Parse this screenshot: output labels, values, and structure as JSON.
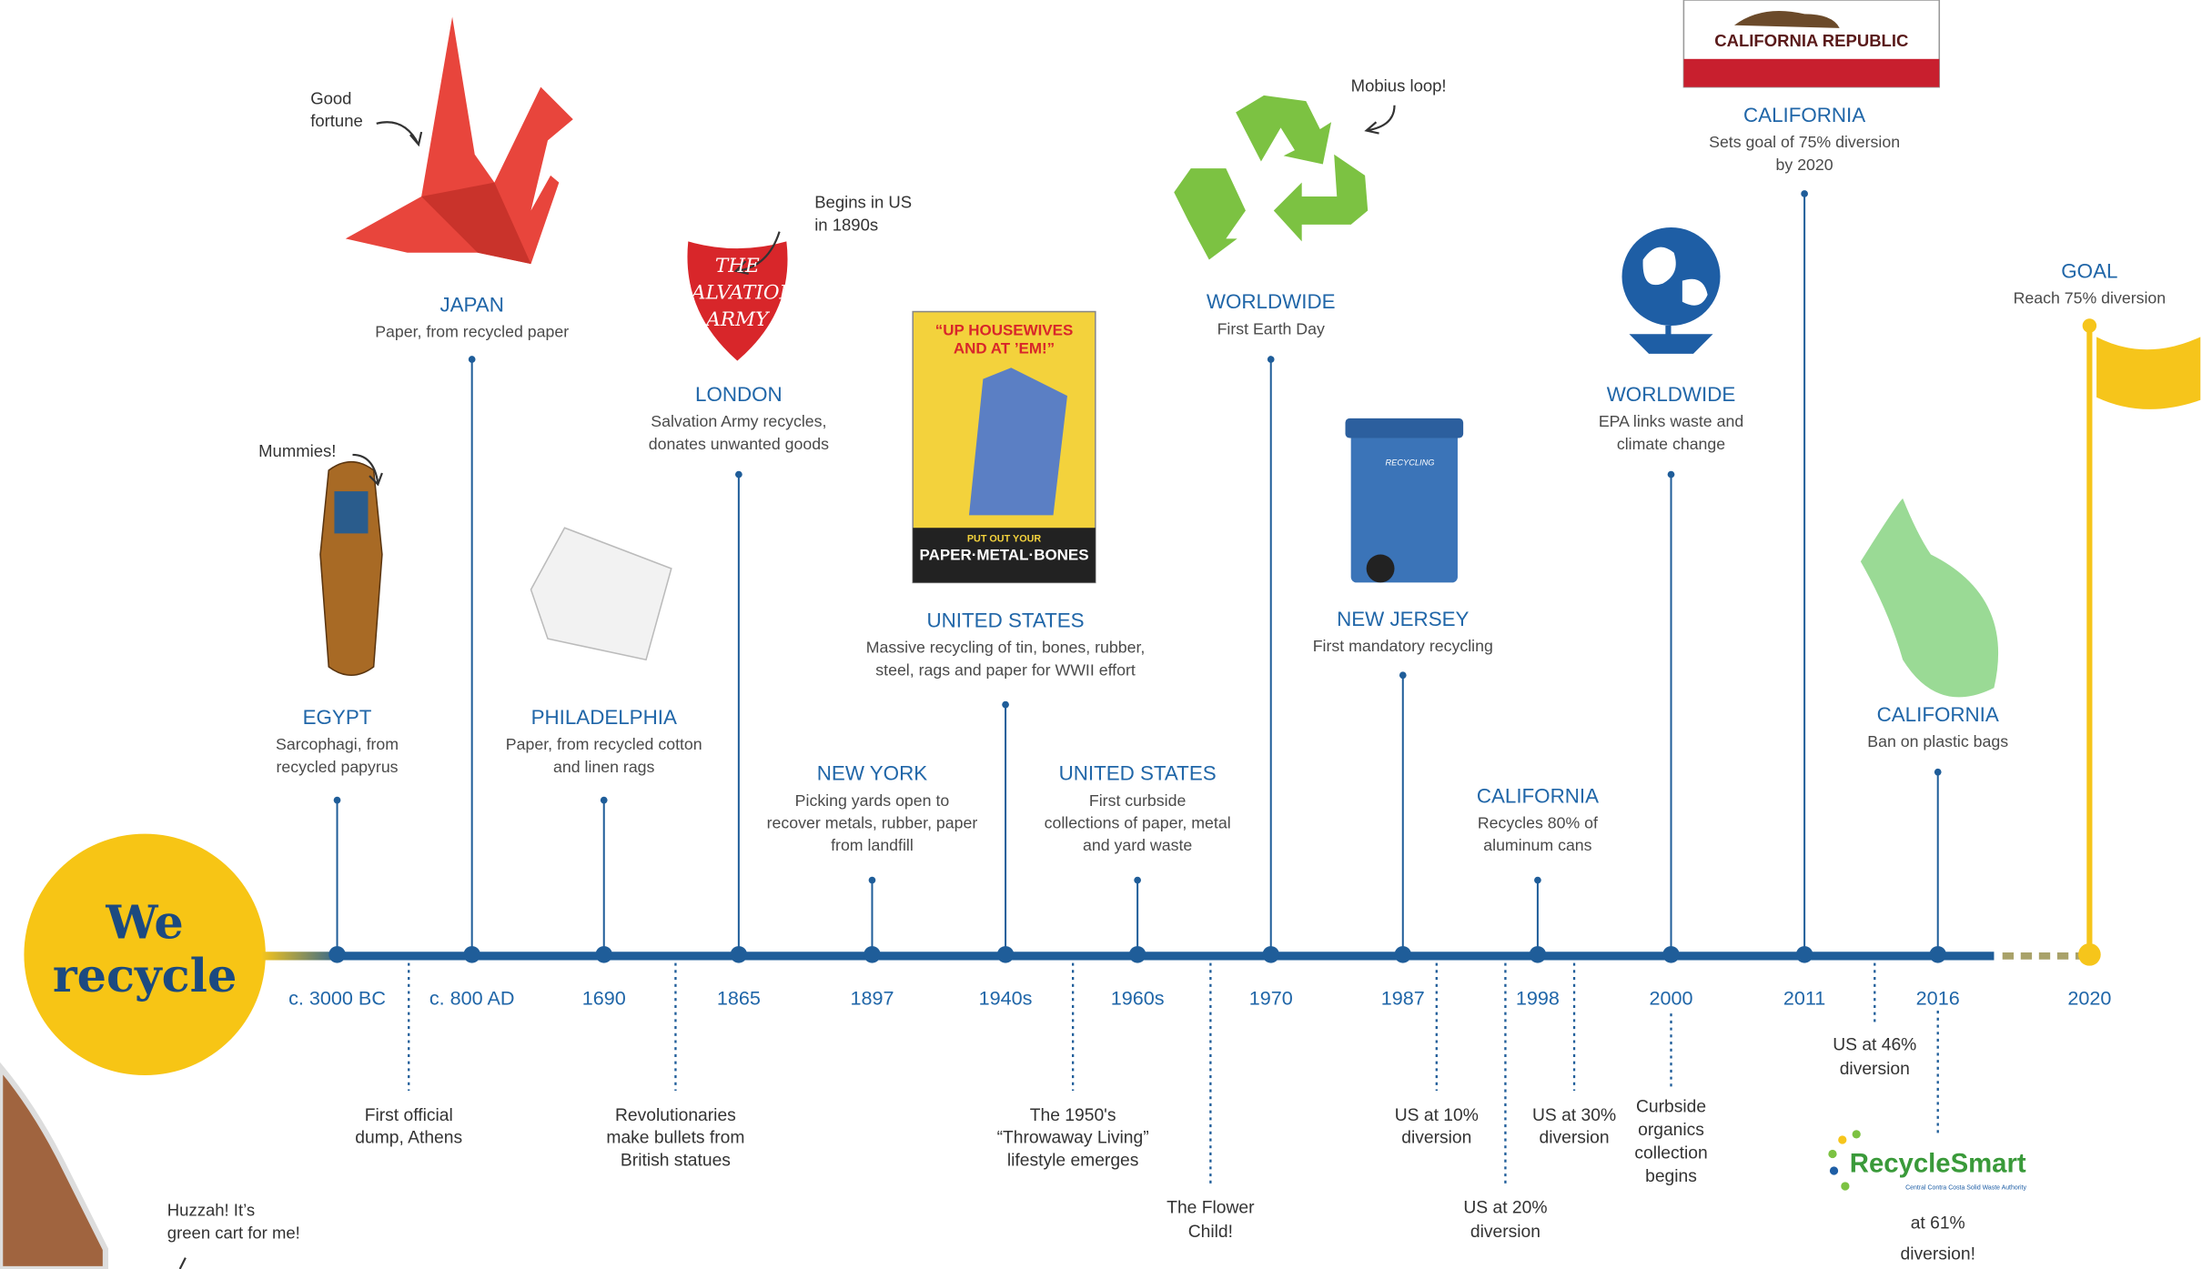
{
  "badge": {
    "lines": [
      "We",
      "recycle"
    ]
  },
  "events": [
    {
      "year": "c. 3000 BC",
      "place": "EGYPT",
      "description": [
        "Sarcophagi, from",
        "recycled papyrus"
      ]
    },
    {
      "year": "c. 800 AD",
      "place": "JAPAN",
      "description": [
        "Paper, from recycled paper"
      ]
    },
    {
      "year": "1690",
      "place": "PHILADELPHIA",
      "description": [
        "Paper, from recycled cotton",
        "and linen rags"
      ]
    },
    {
      "year": "1865",
      "place": "LONDON",
      "description": [
        "Salvation Army recycles,",
        "donates unwanted goods"
      ]
    },
    {
      "year": "1897",
      "place": "NEW YORK",
      "description": [
        "Picking yards open to",
        "recover metals, rubber, paper",
        "from landfill"
      ]
    },
    {
      "year": "1940s",
      "place": "UNITED STATES",
      "description": [
        "Massive recycling of tin, bones, rubber,",
        "steel, rags and paper for WWII effort"
      ]
    },
    {
      "year": "1960s",
      "place": "UNITED STATES",
      "description": [
        "First curbside",
        "collections of paper, metal",
        "and yard waste"
      ]
    },
    {
      "year": "1970",
      "place": "WORLDWIDE",
      "description": [
        "First Earth Day"
      ]
    },
    {
      "year": "1987",
      "place": "NEW JERSEY",
      "description": [
        "First mandatory recycling"
      ]
    },
    {
      "year": "1998",
      "place": "CALIFORNIA",
      "description": [
        "Recycles 80% of",
        "aluminum cans"
      ]
    },
    {
      "year": "2000",
      "place": "WORLDWIDE",
      "description": [
        "EPA links waste and",
        "climate change"
      ]
    },
    {
      "year": "2011",
      "place": "CALIFORNIA",
      "description": [
        "Sets goal of 75% diversion",
        "by 2020"
      ]
    },
    {
      "year": "2016",
      "place": "CALIFORNIA",
      "description": [
        "Ban on plastic bags"
      ]
    },
    {
      "year": "2020",
      "place": "GOAL",
      "description": [
        "Reach 75% diversion"
      ]
    }
  ],
  "notes": [
    {
      "lines": [
        "First official",
        "dump, Athens"
      ]
    },
    {
      "lines": [
        "Revolutionaries",
        "make bullets from",
        "British statues"
      ]
    },
    {
      "lines": [
        "The 1950's",
        "“Throwaway Living”",
        "lifestyle emerges"
      ]
    },
    {
      "lines": [
        "The Flower",
        "Child!"
      ]
    },
    {
      "lines": [
        "US at 10%",
        "diversion"
      ]
    },
    {
      "lines": [
        "US at 20%",
        "diversion"
      ]
    },
    {
      "lines": [
        "US at 30%",
        "diversion"
      ]
    },
    {
      "lines": [
        "Curbside",
        "organics",
        "collection",
        "begins"
      ]
    },
    {
      "lines": [
        "US at 46%",
        "diversion"
      ]
    },
    {
      "lines": [
        "at 61%",
        "diversion!"
      ]
    }
  ],
  "annotations": [
    {
      "lines": [
        "Good",
        "fortune"
      ]
    },
    {
      "lines": [
        "Mummies!"
      ]
    },
    {
      "lines": [
        "Begins in US",
        "in 1890s"
      ]
    },
    {
      "lines": [
        "Mobius loop!"
      ]
    },
    {
      "lines": [
        "Huzzah! It’s",
        "green cart for me!"
      ]
    }
  ],
  "images": {
    "flag": "CALIFORNIA REPUBLIC",
    "salvation_army": [
      "THE",
      "SALVATION",
      "ARMY"
    ],
    "poster": [
      "“UP HOUSEWIVES",
      "AND AT ’EM!”",
      "PUT OUT YOUR",
      "PAPER·METAL·BONES"
    ],
    "bin": "RECYCLING",
    "logo": {
      "name": "RecycleSmart",
      "subtitle": "Central Contra Costa Solid Waste Authority"
    }
  }
}
